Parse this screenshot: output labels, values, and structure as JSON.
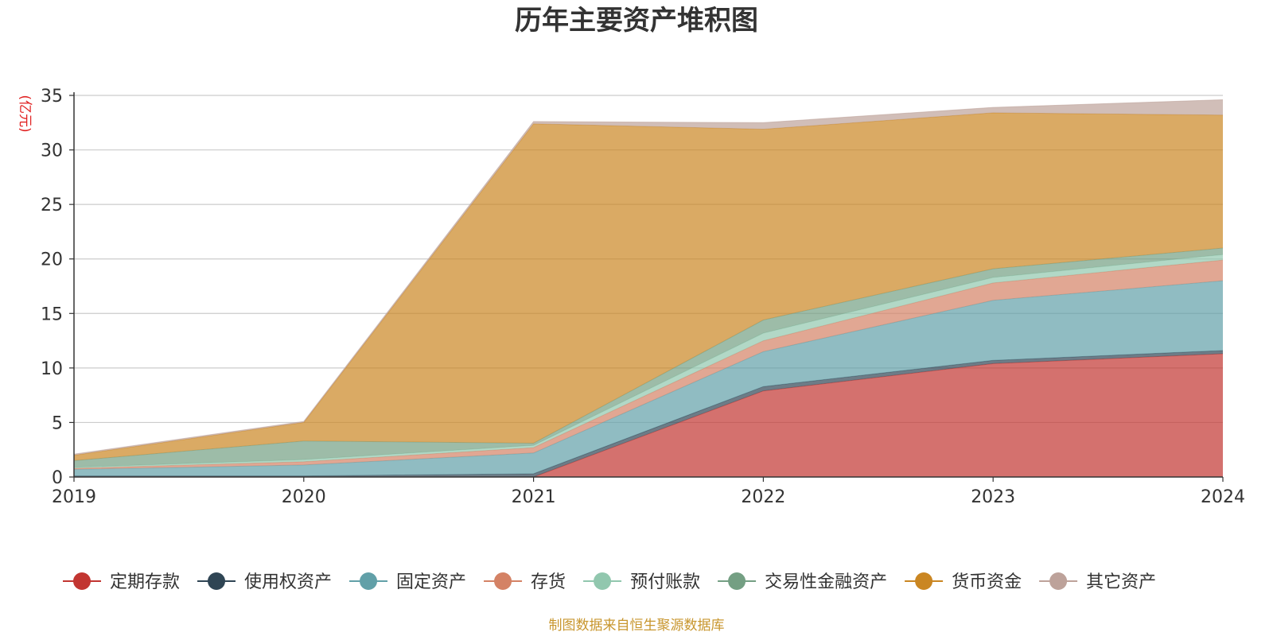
{
  "chart_data": {
    "type": "area",
    "stacked": true,
    "title": "历年主要资产堆积图",
    "y_unit": "(亿元)",
    "x": [
      "2019",
      "2020",
      "2021",
      "2022",
      "2023",
      "2024"
    ],
    "ylim": [
      0,
      35
    ],
    "yticks": [
      0,
      5,
      10,
      15,
      20,
      25,
      30,
      35
    ],
    "grid": true,
    "legend_position": "bottom",
    "series": [
      {
        "name": "定期存款",
        "color": "#c23531",
        "values": [
          0.0,
          0.0,
          0.0,
          7.9,
          10.4,
          11.3
        ]
      },
      {
        "name": "使用权资产",
        "color": "#2f4554",
        "values": [
          0.1,
          0.1,
          0.3,
          0.4,
          0.3,
          0.3
        ]
      },
      {
        "name": "固定资产",
        "color": "#61a0a8",
        "values": [
          0.6,
          1.0,
          1.9,
          3.2,
          5.5,
          6.4
        ]
      },
      {
        "name": "存货",
        "color": "#d48265",
        "values": [
          0.1,
          0.3,
          0.5,
          1.0,
          1.6,
          1.9
        ]
      },
      {
        "name": "预付账款",
        "color": "#91c7ae",
        "values": [
          0.1,
          0.2,
          0.2,
          0.7,
          0.5,
          0.5
        ]
      },
      {
        "name": "交易性金融资产",
        "color": "#749f83",
        "values": [
          0.6,
          1.7,
          0.2,
          1.2,
          0.8,
          0.6
        ]
      },
      {
        "name": "货币资金",
        "color": "#ca8622",
        "values": [
          0.5,
          1.7,
          29.3,
          17.5,
          14.3,
          12.2
        ]
      },
      {
        "name": "其它资产",
        "color": "#bda29a",
        "values": [
          0.1,
          0.1,
          0.2,
          0.6,
          0.5,
          1.4
        ]
      }
    ]
  },
  "source_note": "制图数据来自恒生聚源数据库"
}
